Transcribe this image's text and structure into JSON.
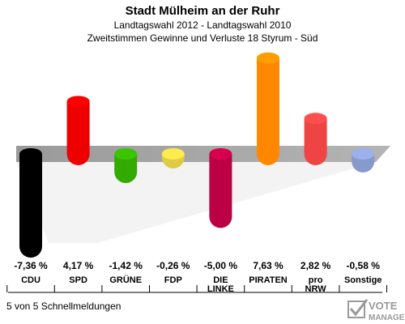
{
  "chart_data": {
    "type": "bar",
    "title": "Stadt Mülheim an der Ruhr",
    "subtitle": "Landtagswahl 2012 - Landtagswahl 2010",
    "subtitle2": "Zweitstimmen Gewinne und Verluste 18 Styrum - Süd",
    "categories": [
      {
        "lines": [
          "CDU"
        ]
      },
      {
        "lines": [
          "SPD"
        ]
      },
      {
        "lines": [
          "GRÜNE"
        ]
      },
      {
        "lines": [
          "FDP"
        ]
      },
      {
        "lines": [
          "DIE",
          "LINKE"
        ]
      },
      {
        "lines": [
          "PIRATEN"
        ]
      },
      {
        "lines": [
          "pro",
          "NRW"
        ]
      },
      {
        "lines": [
          "Sonstige"
        ]
      }
    ],
    "values": [
      -7.36,
      4.17,
      -1.42,
      -0.26,
      -5.0,
      7.63,
      2.82,
      -0.58
    ],
    "value_labels": [
      "-7,36 %",
      "4,17 %",
      "-1,42 %",
      "-0,26 %",
      "-5,00 %",
      "7,63 %",
      "2,82 %",
      "-0,58 %"
    ],
    "colors": [
      "#000000",
      "#ee0000",
      "#33aa00",
      "#ddcc44",
      "#bb0044",
      "#ff8800",
      "#ee4444",
      "#8899cc"
    ],
    "ylim": [
      -7.36,
      7.63
    ],
    "grid": false,
    "footer": "5 von 5 Schnellmeldungen",
    "logo_text": [
      "VOTE",
      "MANAGER"
    ]
  }
}
